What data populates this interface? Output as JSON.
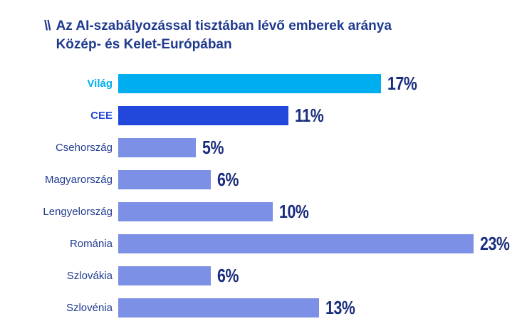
{
  "title": {
    "mark": "\\\\",
    "line1": "Az AI-szabályozással tisztában lévő emberek aránya",
    "line2": "Közép- és Kelet-Európában"
  },
  "colors": {
    "title_navy": "#1f3a8f",
    "value_navy": "#1a2d7d",
    "label_navy": "#203c8f",
    "world_cyan": "#00aeef",
    "cee_blue": "#2247db",
    "country_periwinkle": "#7c90e6",
    "background": "#ffffff"
  },
  "chart_data": {
    "type": "bar",
    "orientation": "horizontal",
    "title": "Az AI-szabályozással tisztában lévő emberek aránya Közép- és Kelet-Európában",
    "categories": [
      "Világ",
      "CEE",
      "Csehország",
      "Magyarország",
      "Lengyelország",
      "Románia",
      "Szlovákia",
      "Szlovénia"
    ],
    "values": [
      17,
      11,
      5,
      6,
      10,
      23,
      6,
      13
    ],
    "value_labels": [
      "17%",
      "11%",
      "5%",
      "6%",
      "10%",
      "23%",
      "6%",
      "13%"
    ],
    "xlim": [
      0,
      23
    ],
    "grid": false,
    "legend": false,
    "axes_visible": false,
    "rows": [
      {
        "label": "Világ",
        "value": 17,
        "display": "17%",
        "bar_color": "#00aeef",
        "label_color": "#00aeef",
        "label_bold": true
      },
      {
        "label": "CEE",
        "value": 11,
        "display": "11%",
        "bar_color": "#2247db",
        "label_color": "#2247db",
        "label_bold": true
      },
      {
        "label": "Csehország",
        "value": 5,
        "display": "5%",
        "bar_color": "#7c90e6",
        "label_color": "#203c8f",
        "label_bold": false
      },
      {
        "label": "Magyarország",
        "value": 6,
        "display": "6%",
        "bar_color": "#7c90e6",
        "label_color": "#203c8f",
        "label_bold": false
      },
      {
        "label": "Lengyelország",
        "value": 10,
        "display": "10%",
        "bar_color": "#7c90e6",
        "label_color": "#203c8f",
        "label_bold": false
      },
      {
        "label": "Románia",
        "value": 23,
        "display": "23%",
        "bar_color": "#7c90e6",
        "label_color": "#203c8f",
        "label_bold": false
      },
      {
        "label": "Szlovákia",
        "value": 6,
        "display": "6%",
        "bar_color": "#7c90e6",
        "label_color": "#203c8f",
        "label_bold": false
      },
      {
        "label": "Szlovénia",
        "value": 13,
        "display": "13%",
        "bar_color": "#7c90e6",
        "label_color": "#203c8f",
        "label_bold": false
      }
    ]
  }
}
